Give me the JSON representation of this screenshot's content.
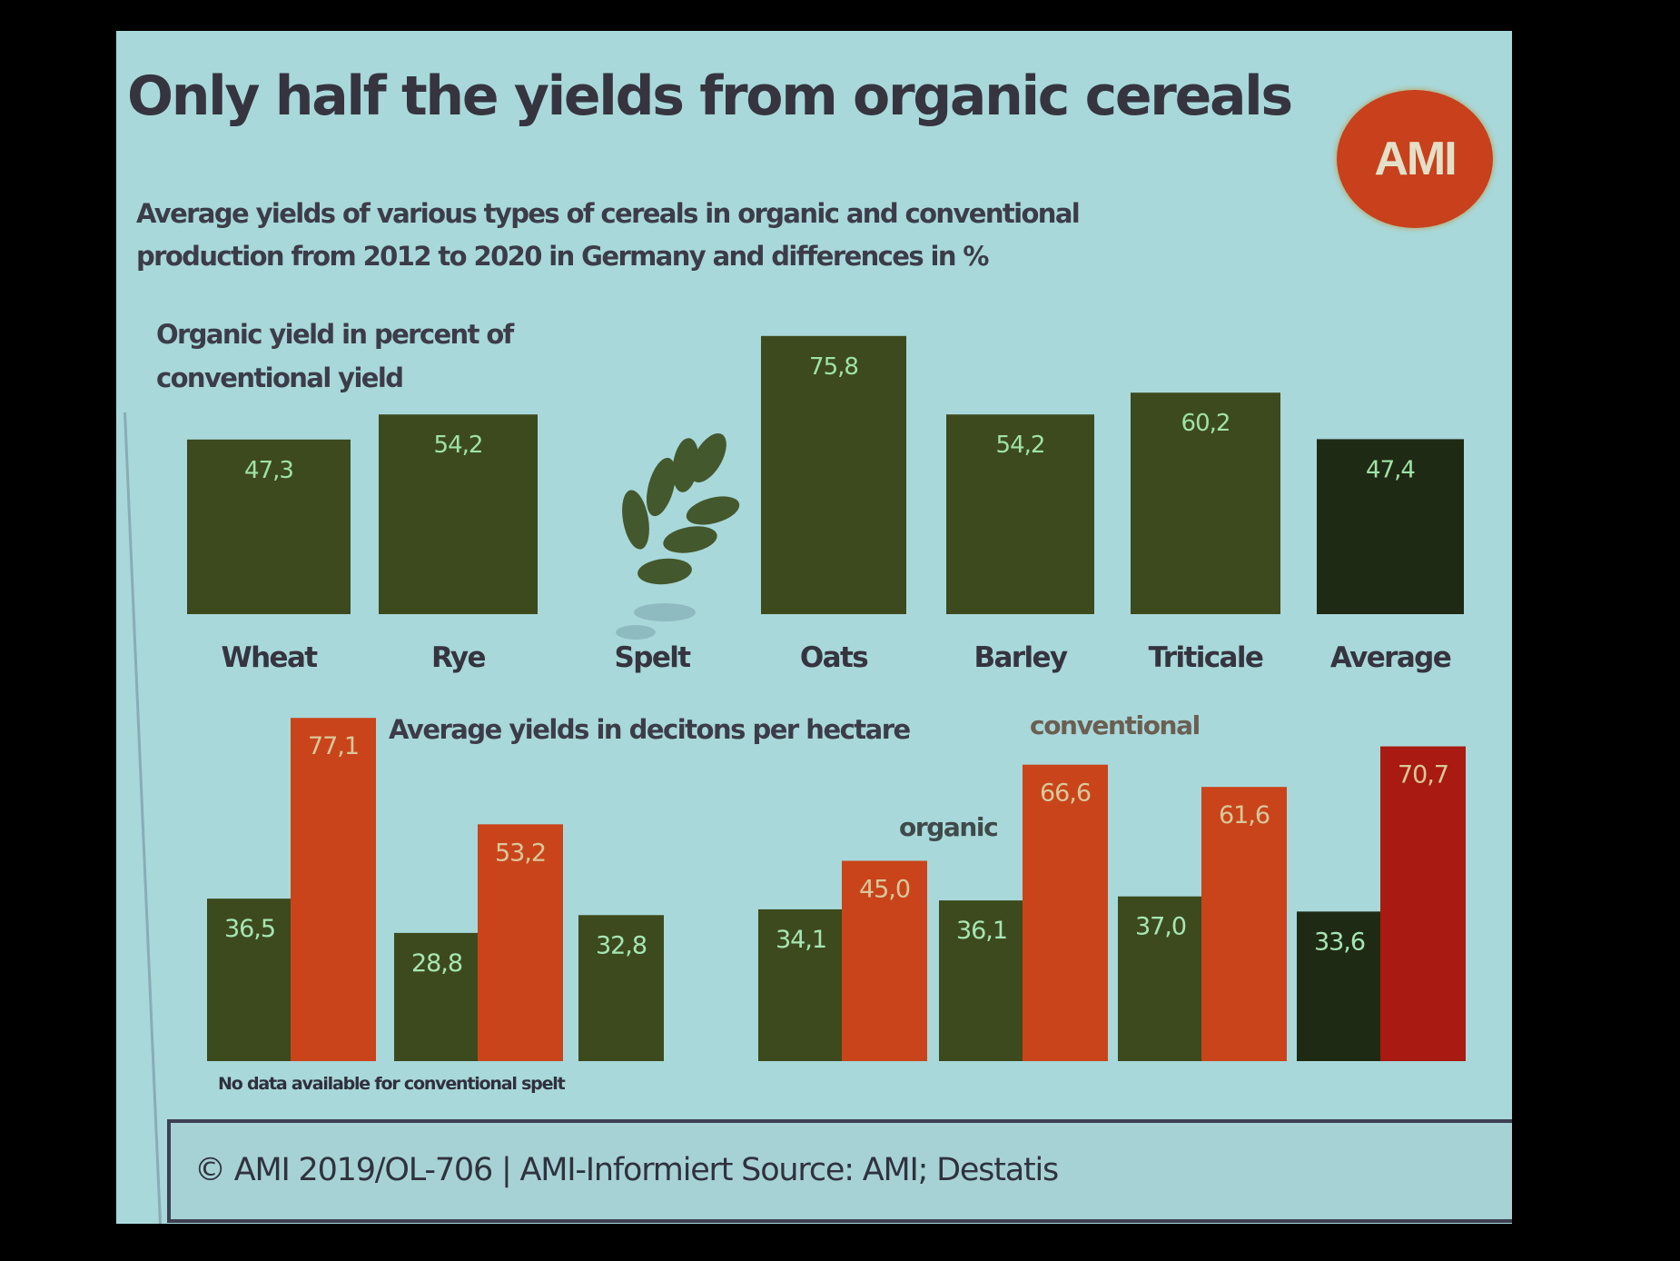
{
  "slide": {
    "title": "Only half the yields from organic cereals",
    "subtitle_line1": "Average yields of various types of cereals in organic and conventional",
    "subtitle_line2": "production  from 2012 to 2020 in Germany and differences in %",
    "logo_text": "AMI",
    "note": "No data available for conventional spelt",
    "footer": "© AMI 2019/OL-706 | AMI-Informiert Source: AMI; Destatis"
  },
  "colors": {
    "background": "#a8d8da",
    "organic": "#3d4a1d",
    "organic_average": "#1f2a14",
    "conventional": "#c9441a",
    "conventional_average": "#a81a12",
    "logo": "#c8401c"
  },
  "icons": {
    "wheat": "wheat-ear-icon"
  },
  "chart_data": [
    {
      "type": "bar",
      "title": "Organic yield in percent of conventional yield",
      "title_line1": "Organic yield in percent of",
      "title_line2": "conventional yield",
      "xlabel": "",
      "ylabel": "",
      "categories": [
        "Wheat",
        "Rye",
        "Spelt",
        "Oats",
        "Barley",
        "Triticale",
        "Average"
      ],
      "values": [
        47.3,
        54.2,
        null,
        75.8,
        54.2,
        60.2,
        47.4
      ],
      "value_labels": [
        "47,3",
        "54,2",
        "",
        "75,8",
        "54,2",
        "60,2",
        "47,4"
      ],
      "grid": false
    },
    {
      "type": "bar",
      "title": "Average yields in decitons per hectare",
      "xlabel": "",
      "ylabel": "",
      "categories": [
        "Wheat",
        "Rye",
        "Spelt",
        "Oats",
        "Barley",
        "Triticale",
        "Average"
      ],
      "legend": [
        "organic",
        "conventional"
      ],
      "series": [
        {
          "name": "organic",
          "values": [
            36.5,
            28.8,
            32.8,
            34.1,
            36.1,
            37.0,
            33.6
          ],
          "labels": [
            "36,5",
            "28,8",
            "32,8",
            "34,1",
            "36,1",
            "37,0",
            "33,6"
          ]
        },
        {
          "name": "conventional",
          "values": [
            77.1,
            53.2,
            null,
            45.0,
            66.6,
            61.6,
            70.7
          ],
          "labels": [
            "77,1",
            "53,2",
            "",
            "45,0",
            "66,6",
            "61,6",
            "70,7"
          ]
        }
      ],
      "grid": false
    }
  ]
}
